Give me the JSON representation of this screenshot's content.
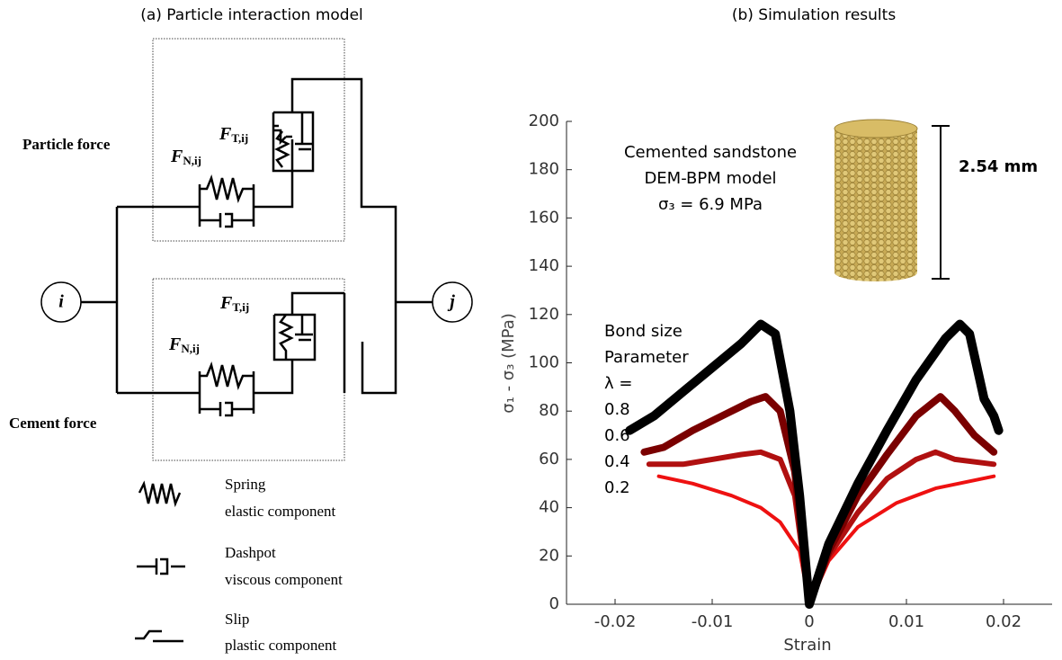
{
  "diagram": {
    "title": "(a) Particle interaction model",
    "particle_force": "Particle force",
    "cement_force": "Cement force",
    "node_i": "i",
    "node_j": "j",
    "forces": [
      {
        "symbol": "F",
        "subscript": "T,ij"
      },
      {
        "symbol": "F",
        "subscript": "N,ij"
      },
      {
        "symbol": "F",
        "subscript": "T,ij"
      },
      {
        "symbol": "F",
        "subscript": "N,ij"
      }
    ],
    "legend": [
      {
        "name": "Spring",
        "description": "elastic component"
      },
      {
        "name": "Dashpot",
        "description": "viscous component"
      },
      {
        "name": "Slip",
        "description": "plastic component"
      }
    ]
  },
  "chart_data": {
    "type": "line",
    "title": "(b) Simulation results",
    "xlabel": "Strain",
    "ylabel": "σ₁ - σ₃ (MPa)",
    "xlim": [
      -0.025,
      0.025
    ],
    "xticks": [
      -0.02,
      -0.01,
      0,
      0.01,
      0.02
    ],
    "ylim": [
      0,
      200
    ],
    "yticks": [
      0,
      20,
      40,
      60,
      80,
      100,
      120,
      140,
      160,
      180,
      200
    ],
    "legend_title": [
      "Bond size",
      "Parameter",
      "λ ="
    ],
    "annotations": [
      "Cemented sandstone",
      "DEM-BPM model",
      "σ₃ = 6.9 MPa"
    ],
    "scale_label": "2.54 mm",
    "series": [
      {
        "name": "0.8",
        "color": "#000000",
        "x": [
          -0.0185,
          -0.016,
          -0.013,
          -0.01,
          -0.007,
          -0.005,
          -0.0035,
          -0.002,
          -0.001,
          0,
          0.002,
          0.005,
          0.008,
          0.011,
          0.014,
          0.0155,
          0.0165,
          0.018,
          0.019,
          0.0195
        ],
        "values": [
          72,
          78,
          88,
          98,
          108,
          116,
          112,
          80,
          45,
          0,
          25,
          50,
          72,
          93,
          110,
          116,
          112,
          85,
          78,
          72
        ]
      },
      {
        "name": "0.6",
        "color": "#7a0000",
        "x": [
          -0.017,
          -0.015,
          -0.012,
          -0.009,
          -0.006,
          -0.0045,
          -0.003,
          -0.0015,
          0,
          0.002,
          0.005,
          0.008,
          0.011,
          0.0135,
          0.015,
          0.017,
          0.019
        ],
        "values": [
          63,
          65,
          72,
          78,
          84,
          86,
          80,
          55,
          0,
          22,
          45,
          62,
          78,
          86,
          80,
          70,
          63
        ]
      },
      {
        "name": "0.4",
        "color": "#b01010",
        "x": [
          -0.0165,
          -0.013,
          -0.01,
          -0.007,
          -0.005,
          -0.003,
          -0.0015,
          0,
          0.002,
          0.005,
          0.008,
          0.011,
          0.013,
          0.015,
          0.019
        ],
        "values": [
          58,
          58,
          60,
          62,
          63,
          60,
          45,
          0,
          20,
          38,
          52,
          60,
          63,
          60,
          58
        ]
      },
      {
        "name": "0.2",
        "color": "#ee1111",
        "x": [
          -0.0155,
          -0.012,
          -0.008,
          -0.005,
          -0.003,
          -0.001,
          0,
          0.002,
          0.005,
          0.009,
          0.013,
          0.019
        ],
        "values": [
          53,
          50,
          45,
          40,
          34,
          22,
          0,
          18,
          32,
          42,
          48,
          53
        ]
      }
    ]
  }
}
